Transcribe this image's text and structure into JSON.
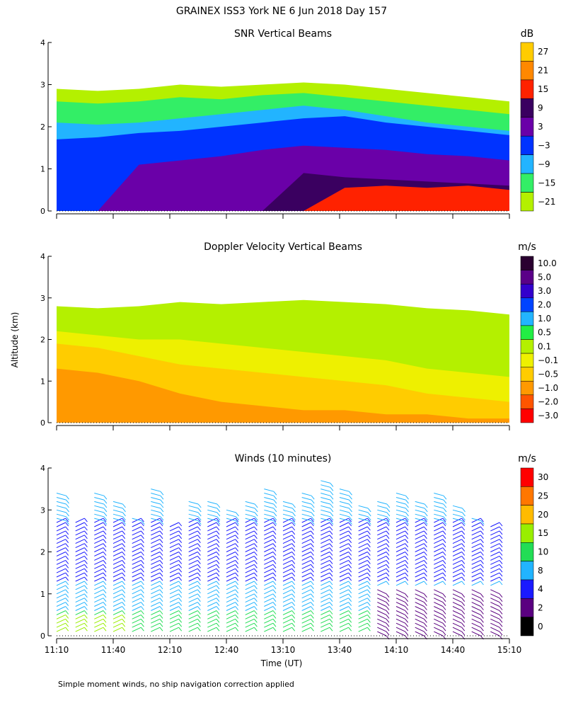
{
  "figure": {
    "title": "GRAINEX ISS3 York NE   6 Jun 2018 Day 157",
    "ylabel": "Altitude (km)",
    "xlabel": "Time (UT)",
    "footnote": "Simple moment winds, no ship navigation correction applied"
  },
  "chart_data": [
    {
      "type": "heatmap",
      "title": "SNR Vertical Beams",
      "colorbar_unit": "dB",
      "colorbar_labels": [
        "27",
        "21",
        "15",
        "9",
        "3",
        "−3",
        "−9",
        "−15",
        "−21"
      ],
      "colorbar_colors": [
        "#ffcc00",
        "#ff8800",
        "#ff2200",
        "#3a0060",
        "#6a00a8",
        "#0033ff",
        "#22b4ff",
        "#33ee66",
        "#b4f000"
      ],
      "x_ticks": [
        "11:10",
        "11:40",
        "12:10",
        "12:40",
        "13:10",
        "13:40",
        "14:10",
        "14:40",
        "15:10"
      ],
      "y_ticks": [
        "0",
        "1",
        "2",
        "3",
        "4"
      ],
      "xlim": [
        "11:10",
        "15:10"
      ],
      "ylim": [
        0,
        4
      ],
      "layers": [
        {
          "level": -21,
          "color": "#b4f000",
          "top": [
            2.9,
            2.85,
            2.9,
            3.0,
            2.95,
            3.0,
            3.05,
            3.0,
            2.9,
            2.8,
            2.7,
            2.6
          ]
        },
        {
          "level": -15,
          "color": "#33ee66",
          "top": [
            2.6,
            2.55,
            2.6,
            2.7,
            2.65,
            2.75,
            2.8,
            2.7,
            2.6,
            2.5,
            2.4,
            2.3
          ]
        },
        {
          "level": -9,
          "color": "#22b4ff",
          "top": [
            2.1,
            2.05,
            2.1,
            2.2,
            2.3,
            2.4,
            2.5,
            2.4,
            2.25,
            2.1,
            2.0,
            1.9
          ]
        },
        {
          "level": -3,
          "color": "#0033ff",
          "top": [
            1.7,
            1.75,
            1.85,
            1.9,
            2.0,
            2.1,
            2.2,
            2.25,
            2.1,
            2.0,
            1.9,
            1.8
          ]
        },
        {
          "level": 3,
          "color": "#6a00a8",
          "top": [
            0.0,
            0.0,
            1.1,
            1.2,
            1.3,
            1.45,
            1.55,
            1.5,
            1.45,
            1.35,
            1.3,
            1.2
          ]
        },
        {
          "level": 9,
          "color": "#3a0060",
          "top": [
            0.0,
            0.0,
            0.0,
            0.0,
            0.0,
            0.0,
            0.9,
            0.8,
            0.75,
            0.7,
            0.65,
            0.6
          ]
        },
        {
          "level": 15,
          "color": "#ff2200",
          "top": [
            0.0,
            0.0,
            0.0,
            0.0,
            0.0,
            0.0,
            0.0,
            0.55,
            0.6,
            0.55,
            0.6,
            0.5
          ]
        }
      ]
    },
    {
      "type": "heatmap",
      "title": "Doppler Velocity Vertical Beams",
      "colorbar_unit": "m/s",
      "colorbar_labels": [
        "10.0",
        "5.0",
        "3.0",
        "2.0",
        "1.0",
        "0.5",
        "0.1",
        "−0.1",
        "−0.5",
        "−1.0",
        "−2.0",
        "−3.0"
      ],
      "colorbar_colors": [
        "#2a0030",
        "#5a0088",
        "#3300cc",
        "#0044ff",
        "#22b4ff",
        "#22ee44",
        "#b4f000",
        "#eef000",
        "#ffcc00",
        "#ff9900",
        "#ff5500",
        "#ff0000"
      ],
      "x_ticks": [
        "11:10",
        "11:40",
        "12:10",
        "12:40",
        "13:10",
        "13:40",
        "14:10",
        "14:40",
        "15:10"
      ],
      "y_ticks": [
        "0",
        "1",
        "2",
        "3",
        "4"
      ],
      "xlim": [
        "11:10",
        "15:10"
      ],
      "ylim": [
        0,
        4
      ],
      "layers": [
        {
          "level": 0.1,
          "color": "#b4f000",
          "top": [
            2.8,
            2.75,
            2.8,
            2.9,
            2.85,
            2.9,
            2.95,
            2.9,
            2.85,
            2.75,
            2.7,
            2.6
          ]
        },
        {
          "level": -0.1,
          "color": "#eef000",
          "top": [
            2.2,
            2.1,
            2.0,
            2.0,
            1.9,
            1.8,
            1.7,
            1.6,
            1.5,
            1.3,
            1.2,
            1.1
          ]
        },
        {
          "level": -0.5,
          "color": "#ffcc00",
          "top": [
            1.9,
            1.8,
            1.6,
            1.4,
            1.3,
            1.2,
            1.1,
            1.0,
            0.9,
            0.7,
            0.6,
            0.5
          ]
        },
        {
          "level": -1.0,
          "color": "#ff9900",
          "top": [
            1.3,
            1.2,
            1.0,
            0.7,
            0.5,
            0.4,
            0.3,
            0.3,
            0.2,
            0.2,
            0.1,
            0.1
          ]
        }
      ]
    },
    {
      "type": "scatter",
      "title": "Winds (10 minutes)",
      "colorbar_unit": "m/s",
      "colorbar_labels": [
        "30",
        "25",
        "20",
        "15",
        "10",
        "8",
        "4",
        "2",
        "0"
      ],
      "colorbar_colors": [
        "#ff0000",
        "#ff7700",
        "#ffbb00",
        "#99ee00",
        "#22dd55",
        "#22b4ff",
        "#1a1aff",
        "#5a0080",
        "#000000"
      ],
      "x_ticks": [
        "11:10",
        "11:40",
        "12:10",
        "12:40",
        "13:10",
        "13:40",
        "14:10",
        "14:40",
        "15:10"
      ],
      "y_ticks": [
        "0",
        "1",
        "2",
        "3",
        "4"
      ],
      "xlim": [
        "11:10",
        "15:10"
      ],
      "ylim": [
        0,
        4
      ],
      "profiles": [
        {
          "time": "11:10",
          "top": 3.4
        },
        {
          "time": "11:20",
          "top": 2.8
        },
        {
          "time": "11:30",
          "top": 3.4
        },
        {
          "time": "11:40",
          "top": 3.3
        },
        {
          "time": "11:50",
          "top": 2.9
        },
        {
          "time": "12:00",
          "top": 3.5
        },
        {
          "time": "12:10",
          "top": 2.6
        },
        {
          "time": "12:20",
          "top": 3.2
        },
        {
          "time": "12:30",
          "top": 3.3
        },
        {
          "time": "12:40",
          "top": 3.0
        },
        {
          "time": "12:50",
          "top": 3.3
        },
        {
          "time": "13:00",
          "top": 3.5
        },
        {
          "time": "13:10",
          "top": 3.2
        },
        {
          "time": "13:20",
          "top": 3.4
        },
        {
          "time": "13:30",
          "top": 3.8
        },
        {
          "time": "13:40",
          "top": 3.5
        },
        {
          "time": "13:50",
          "top": 3.1
        },
        {
          "time": "14:00",
          "top": 3.3
        },
        {
          "time": "14:10",
          "top": 3.4
        },
        {
          "time": "14:20",
          "top": 3.2
        },
        {
          "time": "14:30",
          "top": 3.4
        },
        {
          "time": "14:40",
          "top": 3.1
        },
        {
          "time": "14:50",
          "top": 2.9
        },
        {
          "time": "15:00",
          "top": 2.6
        }
      ]
    }
  ]
}
